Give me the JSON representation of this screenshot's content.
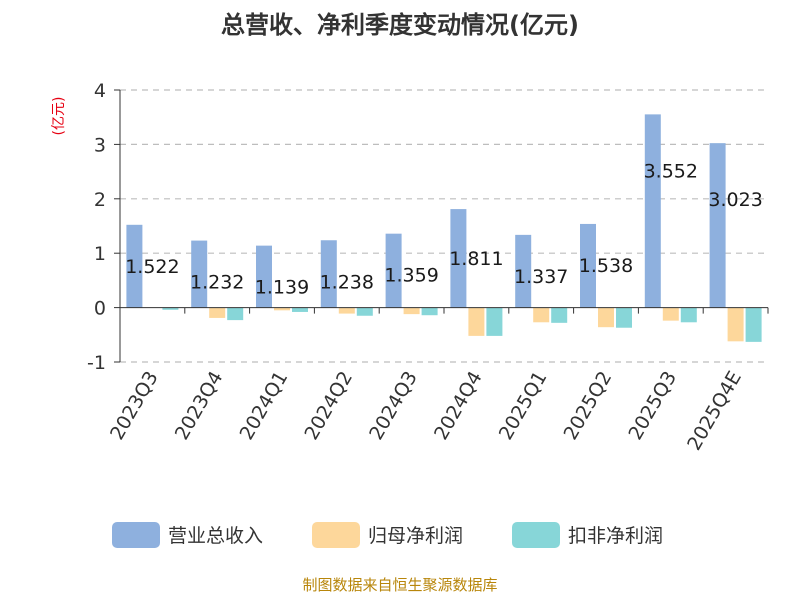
{
  "chart_data": {
    "type": "bar",
    "title": "总营收、净利季度变动情况(亿元)",
    "ylabel": "(亿元)",
    "ylim": [
      -1,
      4
    ],
    "yticks": [
      4,
      3,
      2,
      1,
      0,
      -1
    ],
    "grid": true,
    "legend_position": "bottom",
    "categories": [
      "2023Q3",
      "2023Q4",
      "2024Q1",
      "2024Q2",
      "2024Q3",
      "2024Q4",
      "2025Q1",
      "2025Q2",
      "2025Q3",
      "2025Q4E"
    ],
    "series": [
      {
        "name": "营业总收入",
        "color": "#8eb0de",
        "values": [
          1.522,
          1.232,
          1.139,
          1.238,
          1.359,
          1.811,
          1.337,
          1.538,
          3.552,
          3.023
        ],
        "labels": [
          "1.522",
          "1.232",
          "1.139",
          "1.238",
          "1.359",
          "1.811",
          "1.337",
          "1.538",
          "3.552",
          "3.023"
        ]
      },
      {
        "name": "归母净利润",
        "color": "#fdd79b",
        "values": [
          0,
          -0.19,
          -0.05,
          -0.11,
          -0.12,
          -0.52,
          -0.27,
          -0.36,
          -0.24,
          -0.62
        ]
      },
      {
        "name": "扣非净利润",
        "color": "#87d6d8",
        "values": [
          -0.04,
          -0.23,
          -0.08,
          -0.15,
          -0.14,
          -0.52,
          -0.28,
          -0.37,
          -0.27,
          -0.63
        ]
      }
    ],
    "source": "制图数据来自恒生聚源数据库"
  }
}
